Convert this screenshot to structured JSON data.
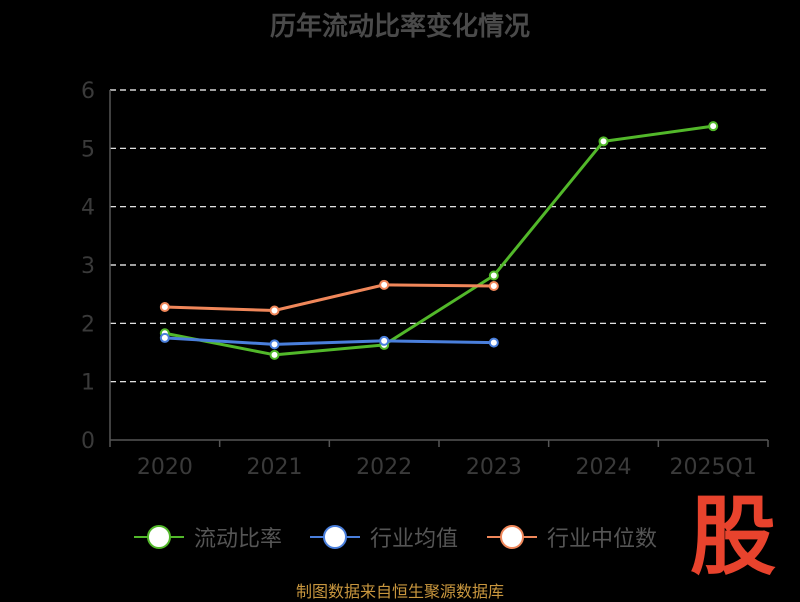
{
  "chart_data": {
    "type": "line",
    "title": "历年流动比率变化情况",
    "categories": [
      "2020",
      "2021",
      "2022",
      "2023",
      "2024",
      "2025Q1"
    ],
    "ylim": [
      0,
      6
    ],
    "yticks": [
      "0",
      "1",
      "2",
      "3",
      "4",
      "5",
      "6"
    ],
    "grid": true,
    "legend_position": "bottom",
    "series": [
      {
        "name": "流动比率",
        "color": "#52b82a",
        "values": [
          1.83,
          1.46,
          1.63,
          2.82,
          5.12,
          5.38
        ]
      },
      {
        "name": "行业均值",
        "color": "#4a7fdc",
        "values": [
          1.75,
          1.64,
          1.7,
          1.67,
          null,
          null
        ]
      },
      {
        "name": "行业中位数",
        "color": "#f0875a",
        "values": [
          2.28,
          2.22,
          2.66,
          2.64,
          null,
          null
        ]
      }
    ]
  },
  "source_text": "制图数据来自恒生聚源数据库",
  "watermark_text": "股"
}
